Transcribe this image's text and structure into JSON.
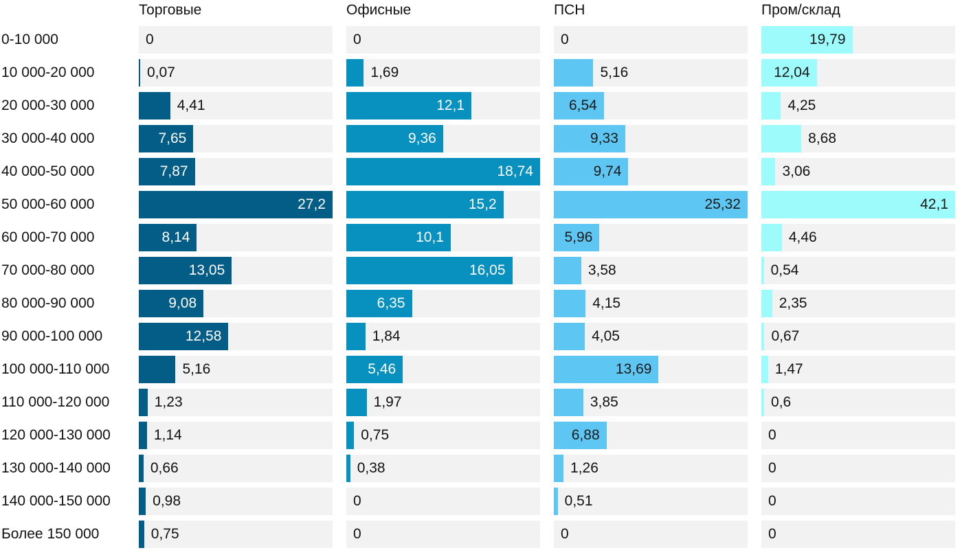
{
  "chart_data": {
    "type": "bar",
    "orientation": "horizontal",
    "layout": "small-multiples",
    "categories": [
      "0-10 000",
      "10 000-20 000",
      "20 000-30 000",
      "30 000-40 000",
      "40 000-50 000",
      "50 000-60 000",
      "60 000-70 000",
      "70 000-80 000",
      "80 000-90 000",
      "90 000-100 000",
      "100 000-110 000",
      "110 000-120 000",
      "120 000-130 000",
      "130 000-140 000",
      "140 000-150 000",
      "Более 150 000"
    ],
    "series": [
      {
        "name": "Торговые",
        "color": "#035d86",
        "label_color": "#ffffff",
        "max": 27.2,
        "values": [
          0,
          0.07,
          4.41,
          7.65,
          7.87,
          27.2,
          8.14,
          13.05,
          9.08,
          12.58,
          5.16,
          1.23,
          1.14,
          0.66,
          0.98,
          0.75
        ],
        "labels": [
          "0",
          "0,07",
          "4,41",
          "7,65",
          "7,87",
          "27,2",
          "8,14",
          "13,05",
          "9,08",
          "12,58",
          "5,16",
          "1,23",
          "1,14",
          "0,66",
          "0,98",
          "0,75"
        ]
      },
      {
        "name": "Офисные",
        "color": "#0891bf",
        "label_color": "#ffffff",
        "max": 18.74,
        "values": [
          0,
          1.69,
          12.1,
          9.36,
          18.74,
          15.2,
          10.1,
          16.05,
          6.35,
          1.84,
          5.46,
          1.97,
          0.75,
          0.38,
          0,
          0
        ],
        "labels": [
          "0",
          "1,69",
          "12,1",
          "9,36",
          "18,74",
          "15,2",
          "10,1",
          "16,05",
          "6,35",
          "1,84",
          "5,46",
          "1,97",
          "0,75",
          "0,38",
          "0",
          "0"
        ]
      },
      {
        "name": "ПСН",
        "color": "#5ec6f2",
        "label_color": "#1a1a1a",
        "max": 25.32,
        "values": [
          0,
          5.16,
          6.54,
          9.33,
          9.74,
          25.32,
          5.96,
          3.58,
          4.15,
          4.05,
          13.69,
          3.85,
          6.88,
          1.26,
          0.51,
          0
        ],
        "labels": [
          "0",
          "5,16",
          "6,54",
          "9,33",
          "9,74",
          "25,32",
          "5,96",
          "3,58",
          "4,15",
          "4,05",
          "13,69",
          "3,85",
          "6,88",
          "1,26",
          "0,51",
          "0"
        ]
      },
      {
        "name": "Пром/склад",
        "color": "#9dfbfb",
        "label_color": "#1a1a1a",
        "max": 42.1,
        "values": [
          19.79,
          12.04,
          4.25,
          8.68,
          3.06,
          42.1,
          4.46,
          0.54,
          2.35,
          0.67,
          1.47,
          0.6,
          0,
          0,
          0,
          0
        ],
        "labels": [
          "19,79",
          "12,04",
          "4,25",
          "8,68",
          "3,06",
          "42,1",
          "4,46",
          "0,54",
          "2,35",
          "0,67",
          "1,47",
          "0,6",
          "0",
          "0",
          "0",
          "0"
        ]
      }
    ],
    "title": "",
    "xlabel": "",
    "ylabel": "",
    "grid": false,
    "legend": "none"
  }
}
